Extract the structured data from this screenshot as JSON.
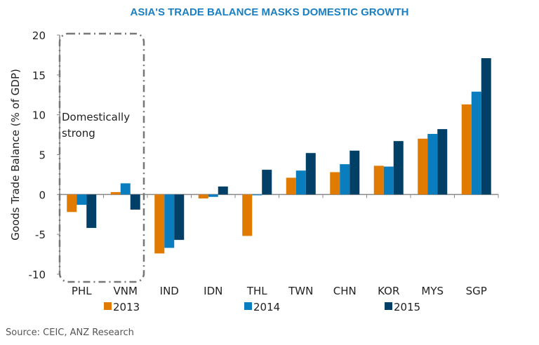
{
  "chart_data": {
    "type": "bar",
    "title": "ASIA'S TRADE BALANCE MASKS DOMESTIC GROWTH",
    "xlabel": "",
    "ylabel": "Goods Trade Balance  (% of GDP)",
    "ylim": [
      -10,
      20
    ],
    "yticks": [
      -10,
      -5,
      0,
      5,
      10,
      15,
      20
    ],
    "categories": [
      "PHL",
      "VNM",
      "IND",
      "IDN",
      "THL",
      "TWN",
      "CHN",
      "KOR",
      "MYS",
      "SGP"
    ],
    "series": [
      {
        "name": "2013",
        "color": "#e07b00",
        "values": [
          -2.2,
          0.3,
          -7.4,
          -0.5,
          -5.2,
          2.1,
          2.8,
          3.6,
          7.0,
          11.3
        ]
      },
      {
        "name": "2014",
        "color": "#0a7dbf",
        "values": [
          -1.3,
          1.4,
          -6.7,
          -0.3,
          -0.1,
          3.0,
          3.8,
          3.5,
          7.6,
          12.9
        ]
      },
      {
        "name": "2015",
        "color": "#003f66",
        "values": [
          -4.2,
          -1.9,
          -5.7,
          1.0,
          3.1,
          5.2,
          5.5,
          6.7,
          8.2,
          17.1
        ]
      }
    ],
    "annotation": {
      "text_line1": "Domestically",
      "text_line2": "strong"
    },
    "legend_position": "bottom",
    "grid": false
  },
  "source": "Source: CEIC, ANZ Research"
}
